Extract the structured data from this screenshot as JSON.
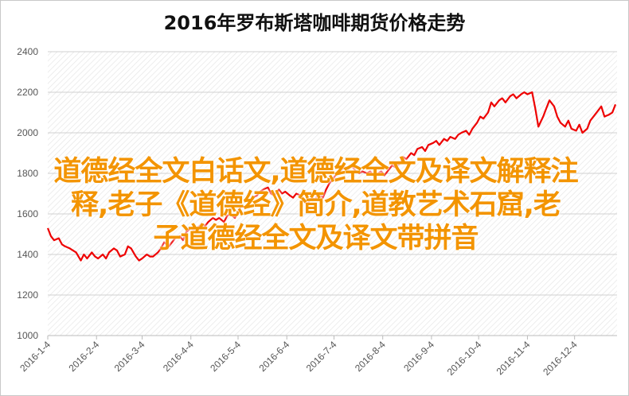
{
  "chart_data": {
    "type": "line",
    "title": "2016年罗布斯塔咖啡期货价格走势",
    "xlabel": "",
    "ylabel": "",
    "ylim": [
      1000,
      2400
    ],
    "yticks": [
      1000,
      1200,
      1400,
      1600,
      1800,
      2000,
      2200,
      2400
    ],
    "x_ticks": [
      "2016-1-4",
      "2016-2-4",
      "2016-3-4",
      "2016-4-4",
      "2016-5-4",
      "2016-6-4",
      "2016-7-4",
      "2016-8-4",
      "2016-9-4",
      "2016-10-4",
      "2016-11-4",
      "2016-12-4"
    ],
    "grid": true,
    "line_color": "#ee0000",
    "series": [
      {
        "points": [
          [
            "2016-01-04",
            1530
          ],
          [
            "2016-01-06",
            1490
          ],
          [
            "2016-01-08",
            1470
          ],
          [
            "2016-01-11",
            1480
          ],
          [
            "2016-01-13",
            1450
          ],
          [
            "2016-01-15",
            1440
          ],
          [
            "2016-01-18",
            1430
          ],
          [
            "2016-01-20",
            1420
          ],
          [
            "2016-01-22",
            1410
          ],
          [
            "2016-01-25",
            1370
          ],
          [
            "2016-01-27",
            1400
          ],
          [
            "2016-01-29",
            1380
          ],
          [
            "2016-02-01",
            1410
          ],
          [
            "2016-02-03",
            1390
          ],
          [
            "2016-02-05",
            1380
          ],
          [
            "2016-02-08",
            1400
          ],
          [
            "2016-02-10",
            1380
          ],
          [
            "2016-02-12",
            1410
          ],
          [
            "2016-02-15",
            1430
          ],
          [
            "2016-02-17",
            1420
          ],
          [
            "2016-02-19",
            1390
          ],
          [
            "2016-02-22",
            1400
          ],
          [
            "2016-02-24",
            1440
          ],
          [
            "2016-02-26",
            1430
          ],
          [
            "2016-02-29",
            1390
          ],
          [
            "2016-03-02",
            1370
          ],
          [
            "2016-03-04",
            1380
          ],
          [
            "2016-03-07",
            1400
          ],
          [
            "2016-03-09",
            1390
          ],
          [
            "2016-03-11",
            1390
          ],
          [
            "2016-03-14",
            1410
          ],
          [
            "2016-03-16",
            1430
          ],
          [
            "2016-03-18",
            1460
          ],
          [
            "2016-03-21",
            1440
          ],
          [
            "2016-03-23",
            1460
          ],
          [
            "2016-03-25",
            1480
          ],
          [
            "2016-03-28",
            1490
          ],
          [
            "2016-03-30",
            1470
          ],
          [
            "2016-04-01",
            1510
          ],
          [
            "2016-04-04",
            1530
          ],
          [
            "2016-04-06",
            1520
          ],
          [
            "2016-04-08",
            1530
          ],
          [
            "2016-04-11",
            1550
          ],
          [
            "2016-04-13",
            1540
          ],
          [
            "2016-04-15",
            1560
          ],
          [
            "2016-04-18",
            1580
          ],
          [
            "2016-04-20",
            1570
          ],
          [
            "2016-04-22",
            1580
          ],
          [
            "2016-04-25",
            1560
          ],
          [
            "2016-04-27",
            1590
          ],
          [
            "2016-04-29",
            1600
          ],
          [
            "2016-05-02",
            1580
          ],
          [
            "2016-05-04",
            1610
          ],
          [
            "2016-05-06",
            1640
          ],
          [
            "2016-05-09",
            1630
          ],
          [
            "2016-05-11",
            1660
          ],
          [
            "2016-05-13",
            1680
          ],
          [
            "2016-05-16",
            1690
          ],
          [
            "2016-05-18",
            1710
          ],
          [
            "2016-05-20",
            1720
          ],
          [
            "2016-05-23",
            1730
          ],
          [
            "2016-05-25",
            1700
          ],
          [
            "2016-05-27",
            1690
          ],
          [
            "2016-05-30",
            1720
          ],
          [
            "2016-06-01",
            1700
          ],
          [
            "2016-06-03",
            1710
          ],
          [
            "2016-06-06",
            1690
          ],
          [
            "2016-06-08",
            1680
          ],
          [
            "2016-06-10",
            1700
          ],
          [
            "2016-06-13",
            1690
          ],
          [
            "2016-06-15",
            1660
          ],
          [
            "2016-06-17",
            1650
          ],
          [
            "2016-06-20",
            1680
          ],
          [
            "2016-06-22",
            1670
          ],
          [
            "2016-06-24",
            1700
          ],
          [
            "2016-06-27",
            1680
          ],
          [
            "2016-06-29",
            1720
          ],
          [
            "2016-07-01",
            1750
          ],
          [
            "2016-07-04",
            1780
          ],
          [
            "2016-07-06",
            1800
          ],
          [
            "2016-07-08",
            1810
          ],
          [
            "2016-07-11",
            1830
          ],
          [
            "2016-07-13",
            1820
          ],
          [
            "2016-07-15",
            1840
          ],
          [
            "2016-07-18",
            1810
          ],
          [
            "2016-07-20",
            1800
          ],
          [
            "2016-07-22",
            1810
          ],
          [
            "2016-07-25",
            1800
          ],
          [
            "2016-07-27",
            1810
          ],
          [
            "2016-07-29",
            1790
          ],
          [
            "2016-08-01",
            1800
          ],
          [
            "2016-08-03",
            1810
          ],
          [
            "2016-08-05",
            1790
          ],
          [
            "2016-08-08",
            1820
          ],
          [
            "2016-08-10",
            1840
          ],
          [
            "2016-08-12",
            1830
          ],
          [
            "2016-08-15",
            1850
          ],
          [
            "2016-08-17",
            1880
          ],
          [
            "2016-08-19",
            1870
          ],
          [
            "2016-08-22",
            1900
          ],
          [
            "2016-08-24",
            1890
          ],
          [
            "2016-08-26",
            1920
          ],
          [
            "2016-08-29",
            1930
          ],
          [
            "2016-08-31",
            1910
          ],
          [
            "2016-09-02",
            1940
          ],
          [
            "2016-09-05",
            1950
          ],
          [
            "2016-09-07",
            1960
          ],
          [
            "2016-09-09",
            1940
          ],
          [
            "2016-09-12",
            1970
          ],
          [
            "2016-09-14",
            1960
          ],
          [
            "2016-09-16",
            1980
          ],
          [
            "2016-09-19",
            1970
          ],
          [
            "2016-09-21",
            1990
          ],
          [
            "2016-09-23",
            2000
          ],
          [
            "2016-09-26",
            2010
          ],
          [
            "2016-09-28",
            1990
          ],
          [
            "2016-09-30",
            2020
          ],
          [
            "2016-10-03",
            2050
          ],
          [
            "2016-10-05",
            2080
          ],
          [
            "2016-10-07",
            2070
          ],
          [
            "2016-10-10",
            2100
          ],
          [
            "2016-10-12",
            2150
          ],
          [
            "2016-10-14",
            2130
          ],
          [
            "2016-10-17",
            2160
          ],
          [
            "2016-10-19",
            2170
          ],
          [
            "2016-10-21",
            2150
          ],
          [
            "2016-10-24",
            2180
          ],
          [
            "2016-10-26",
            2190
          ],
          [
            "2016-10-28",
            2170
          ],
          [
            "2016-10-31",
            2190
          ],
          [
            "2016-11-02",
            2200
          ],
          [
            "2016-11-04",
            2190
          ],
          [
            "2016-11-07",
            2200
          ],
          [
            "2016-11-09",
            2120
          ],
          [
            "2016-11-11",
            2030
          ],
          [
            "2016-11-14",
            2080
          ],
          [
            "2016-11-16",
            2120
          ],
          [
            "2016-11-18",
            2160
          ],
          [
            "2016-11-21",
            2130
          ],
          [
            "2016-11-23",
            2080
          ],
          [
            "2016-11-25",
            2050
          ],
          [
            "2016-11-28",
            2030
          ],
          [
            "2016-11-30",
            2060
          ],
          [
            "2016-12-02",
            2020
          ],
          [
            "2016-12-05",
            2010
          ],
          [
            "2016-12-07",
            2040
          ],
          [
            "2016-12-09",
            2000
          ],
          [
            "2016-12-12",
            2020
          ],
          [
            "2016-12-14",
            2060
          ],
          [
            "2016-12-16",
            2080
          ],
          [
            "2016-12-19",
            2110
          ],
          [
            "2016-12-21",
            2130
          ],
          [
            "2016-12-23",
            2080
          ],
          [
            "2016-12-26",
            2090
          ],
          [
            "2016-12-28",
            2100
          ],
          [
            "2016-12-30",
            2140
          ]
        ]
      }
    ]
  },
  "watermark": {
    "line1": "道德经全文白话文,道德经全文及译文解释注",
    "line2": "释,老子《道德经》简介,道教艺术石窟,老",
    "line3": "子道德经全文及译文带拼音"
  }
}
